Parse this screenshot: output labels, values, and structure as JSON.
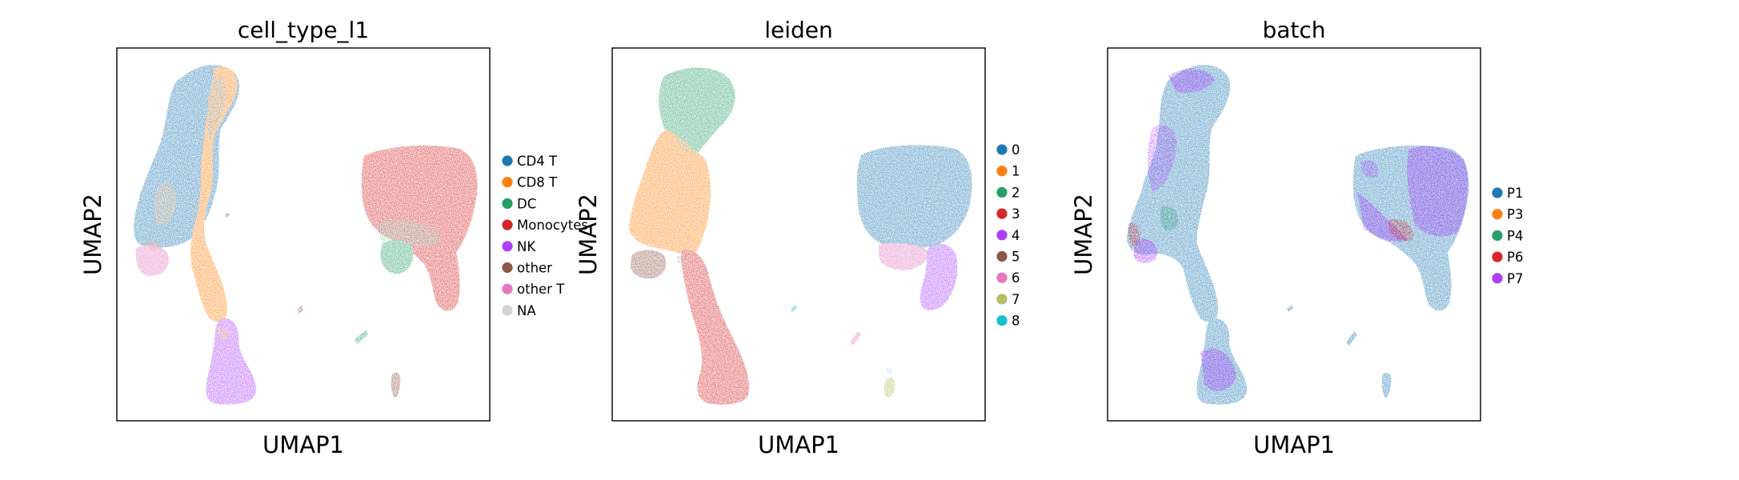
{
  "chart_data": [
    {
      "type": "scatter",
      "title": "cell_type_l1",
      "xlabel": "UMAP1",
      "ylabel": "UMAP2",
      "ticks": "none",
      "legend_position": "right",
      "legend": [
        {
          "label": "CD4 T",
          "color": "#1f77b4"
        },
        {
          "label": "CD8 T",
          "color": "#ff7f0e"
        },
        {
          "label": "DC",
          "color": "#279e68"
        },
        {
          "label": "Monocytes",
          "color": "#d62728"
        },
        {
          "label": "NK",
          "color": "#aa40fc"
        },
        {
          "label": "other",
          "color": "#8c564b"
        },
        {
          "label": "other T",
          "color": "#e377c2"
        },
        {
          "label": "NA",
          "color": "#d3d3d3"
        }
      ]
    },
    {
      "type": "scatter",
      "title": "leiden",
      "xlabel": "UMAP1",
      "ylabel": "UMAP2",
      "ticks": "none",
      "legend_position": "right",
      "legend": [
        {
          "label": "0",
          "color": "#1f77b4"
        },
        {
          "label": "1",
          "color": "#ff7f0e"
        },
        {
          "label": "2",
          "color": "#279e68"
        },
        {
          "label": "3",
          "color": "#d62728"
        },
        {
          "label": "4",
          "color": "#aa40fc"
        },
        {
          "label": "5",
          "color": "#8c564b"
        },
        {
          "label": "6",
          "color": "#e377c2"
        },
        {
          "label": "7",
          "color": "#b5bd61"
        },
        {
          "label": "8",
          "color": "#17becf"
        }
      ]
    },
    {
      "type": "scatter",
      "title": "batch",
      "xlabel": "UMAP1",
      "ylabel": "UMAP2",
      "ticks": "none",
      "legend_position": "right",
      "legend": [
        {
          "label": "P1",
          "color": "#1f77b4"
        },
        {
          "label": "P3",
          "color": "#ff7f0e"
        },
        {
          "label": "P4",
          "color": "#279e68"
        },
        {
          "label": "P6",
          "color": "#d62728"
        },
        {
          "label": "P7",
          "color": "#aa40fc"
        }
      ]
    }
  ]
}
